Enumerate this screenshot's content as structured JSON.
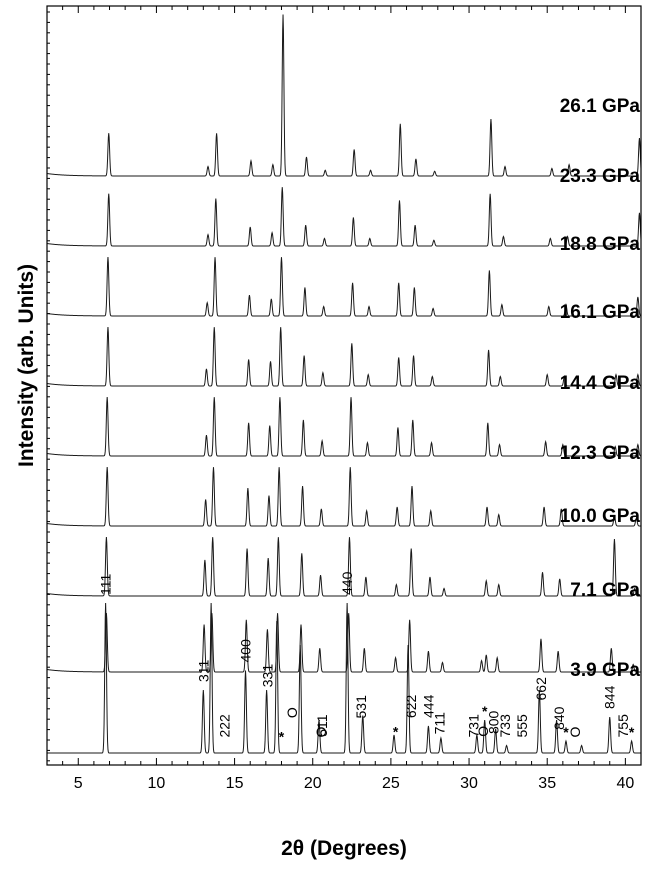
{
  "chart_data": {
    "type": "line",
    "xlabel": "2θ (Degrees)",
    "ylabel": "Intensity (arb. Units)",
    "xlim": [
      3,
      41
    ],
    "x_ticks": [
      "5",
      "10",
      "15",
      "20",
      "25",
      "30",
      "35",
      "40"
    ],
    "series": [
      {
        "name": "3.9 GPa",
        "peaks": [
          [
            6.75,
            1.0
          ],
          [
            13.0,
            0.42
          ],
          [
            13.5,
            1.0
          ],
          [
            15.7,
            0.55
          ],
          [
            17.05,
            0.42
          ],
          [
            17.7,
            0.88
          ],
          [
            19.2,
            0.72
          ],
          [
            20.4,
            0.22
          ],
          [
            22.2,
            1.0
          ],
          [
            23.2,
            0.25
          ],
          [
            25.2,
            0.12
          ],
          [
            26.1,
            0.72
          ],
          [
            27.4,
            0.18
          ],
          [
            28.2,
            0.1
          ],
          [
            30.5,
            0.12
          ],
          [
            31.0,
            0.22
          ],
          [
            31.7,
            0.16
          ],
          [
            32.4,
            0.05
          ],
          [
            34.5,
            0.42
          ],
          [
            35.6,
            0.22
          ],
          [
            36.2,
            0.08
          ],
          [
            37.2,
            0.05
          ],
          [
            39.0,
            0.24
          ],
          [
            40.4,
            0.08
          ]
        ]
      },
      {
        "name": "7.1 GPa",
        "peaks": [
          [
            6.8,
            0.62
          ],
          [
            13.05,
            0.5
          ],
          [
            13.55,
            0.62
          ],
          [
            15.75,
            0.55
          ],
          [
            17.1,
            0.45
          ],
          [
            17.75,
            0.62
          ],
          [
            19.25,
            0.5
          ],
          [
            20.45,
            0.25
          ],
          [
            22.3,
            0.62
          ],
          [
            23.3,
            0.25
          ],
          [
            25.3,
            0.15
          ],
          [
            26.2,
            0.55
          ],
          [
            27.4,
            0.22
          ],
          [
            28.3,
            0.1
          ],
          [
            30.8,
            0.12
          ],
          [
            31.1,
            0.18
          ],
          [
            31.8,
            0.15
          ],
          [
            34.6,
            0.35
          ],
          [
            35.7,
            0.22
          ],
          [
            39.1,
            0.25
          ],
          [
            40.5,
            0.08
          ]
        ]
      },
      {
        "name": "10.0 GPa",
        "peaks": [
          [
            6.8,
            0.62
          ],
          [
            13.1,
            0.38
          ],
          [
            13.6,
            0.62
          ],
          [
            15.8,
            0.5
          ],
          [
            17.15,
            0.4
          ],
          [
            17.8,
            0.62
          ],
          [
            19.3,
            0.45
          ],
          [
            20.5,
            0.22
          ],
          [
            22.35,
            0.62
          ],
          [
            23.4,
            0.2
          ],
          [
            25.35,
            0.12
          ],
          [
            26.3,
            0.5
          ],
          [
            27.5,
            0.2
          ],
          [
            28.4,
            0.08
          ],
          [
            31.1,
            0.16
          ],
          [
            31.9,
            0.12
          ],
          [
            34.7,
            0.25
          ],
          [
            35.8,
            0.18
          ],
          [
            39.3,
            0.6
          ],
          [
            40.6,
            0.08
          ]
        ]
      },
      {
        "name": "12.3 GPa",
        "peaks": [
          [
            6.85,
            0.62
          ],
          [
            13.15,
            0.28
          ],
          [
            13.65,
            0.62
          ],
          [
            15.85,
            0.4
          ],
          [
            17.2,
            0.32
          ],
          [
            17.85,
            0.62
          ],
          [
            19.35,
            0.42
          ],
          [
            20.55,
            0.18
          ],
          [
            22.4,
            0.62
          ],
          [
            23.45,
            0.16
          ],
          [
            25.4,
            0.2
          ],
          [
            26.35,
            0.42
          ],
          [
            27.55,
            0.16
          ],
          [
            31.15,
            0.2
          ],
          [
            31.9,
            0.12
          ],
          [
            34.8,
            0.2
          ],
          [
            35.9,
            0.18
          ],
          [
            39.3,
            0.1
          ],
          [
            40.7,
            0.08
          ]
        ]
      },
      {
        "name": "14.4 GPa",
        "peaks": [
          [
            6.85,
            0.62
          ],
          [
            13.2,
            0.22
          ],
          [
            13.7,
            0.62
          ],
          [
            15.9,
            0.35
          ],
          [
            17.25,
            0.32
          ],
          [
            17.9,
            0.62
          ],
          [
            19.4,
            0.38
          ],
          [
            20.6,
            0.16
          ],
          [
            22.45,
            0.62
          ],
          [
            23.5,
            0.14
          ],
          [
            25.45,
            0.3
          ],
          [
            26.4,
            0.38
          ],
          [
            27.6,
            0.14
          ],
          [
            31.2,
            0.35
          ],
          [
            31.95,
            0.12
          ],
          [
            34.9,
            0.15
          ],
          [
            36.0,
            0.12
          ],
          [
            39.35,
            0.1
          ],
          [
            40.8,
            0.12
          ]
        ]
      },
      {
        "name": "16.1 GPa",
        "peaks": [
          [
            6.9,
            0.62
          ],
          [
            13.2,
            0.18
          ],
          [
            13.7,
            0.62
          ],
          [
            15.9,
            0.28
          ],
          [
            17.3,
            0.26
          ],
          [
            17.95,
            0.62
          ],
          [
            19.45,
            0.32
          ],
          [
            20.65,
            0.14
          ],
          [
            22.5,
            0.45
          ],
          [
            23.55,
            0.12
          ],
          [
            25.5,
            0.3
          ],
          [
            26.45,
            0.32
          ],
          [
            27.65,
            0.1
          ],
          [
            31.25,
            0.38
          ],
          [
            32.0,
            0.1
          ],
          [
            35.0,
            0.12
          ],
          [
            36.1,
            0.1
          ],
          [
            39.4,
            0.12
          ],
          [
            40.8,
            0.12
          ]
        ]
      },
      {
        "name": "18.8 GPa",
        "peaks": [
          [
            6.9,
            0.62
          ],
          [
            13.25,
            0.14
          ],
          [
            13.75,
            0.62
          ],
          [
            15.95,
            0.22
          ],
          [
            17.35,
            0.18
          ],
          [
            18.0,
            0.62
          ],
          [
            19.5,
            0.3
          ],
          [
            20.7,
            0.1
          ],
          [
            22.55,
            0.35
          ],
          [
            23.6,
            0.1
          ],
          [
            25.5,
            0.35
          ],
          [
            26.5,
            0.3
          ],
          [
            27.7,
            0.08
          ],
          [
            31.3,
            0.48
          ],
          [
            32.1,
            0.12
          ],
          [
            35.1,
            0.1
          ],
          [
            36.2,
            0.12
          ],
          [
            40.8,
            0.2
          ]
        ]
      },
      {
        "name": "23.3 GPa",
        "peaks": [
          [
            6.95,
            0.55
          ],
          [
            13.3,
            0.12
          ],
          [
            13.8,
            0.5
          ],
          [
            16.0,
            0.2
          ],
          [
            17.4,
            0.14
          ],
          [
            18.05,
            0.62
          ],
          [
            19.55,
            0.22
          ],
          [
            20.75,
            0.08
          ],
          [
            22.6,
            0.3
          ],
          [
            23.65,
            0.08
          ],
          [
            25.55,
            0.48
          ],
          [
            26.55,
            0.22
          ],
          [
            27.75,
            0.06
          ],
          [
            31.35,
            0.55
          ],
          [
            32.2,
            0.1
          ],
          [
            35.2,
            0.08
          ],
          [
            36.3,
            0.1
          ],
          [
            40.9,
            0.35
          ]
        ]
      },
      {
        "name": "26.1 GPa",
        "peaks": [
          [
            6.95,
            0.45
          ],
          [
            13.3,
            0.1
          ],
          [
            13.85,
            0.45
          ],
          [
            16.05,
            0.16
          ],
          [
            17.45,
            0.12
          ],
          [
            18.1,
            1.7
          ],
          [
            19.6,
            0.2
          ],
          [
            20.8,
            0.06
          ],
          [
            22.65,
            0.28
          ],
          [
            23.7,
            0.06
          ],
          [
            25.6,
            0.55
          ],
          [
            26.6,
            0.18
          ],
          [
            27.8,
            0.05
          ],
          [
            31.4,
            0.6
          ],
          [
            32.3,
            0.1
          ],
          [
            35.3,
            0.08
          ],
          [
            36.4,
            0.12
          ],
          [
            40.9,
            0.4
          ]
        ]
      }
    ],
    "annotations": [
      {
        "text": "111",
        "x": 6.75
      },
      {
        "text": "311",
        "x": 13.0
      },
      {
        "text": "222",
        "x": 14.35
      },
      {
        "text": "400",
        "x": 15.7
      },
      {
        "text": "331",
        "x": 17.1
      },
      {
        "text": "*",
        "x": 18.0
      },
      {
        "text": "O",
        "x": 19.0
      },
      {
        "text": "511",
        "x": 20.6
      },
      {
        "text": "O",
        "x": 20.85
      },
      {
        "text": "440",
        "x": 22.2
      },
      {
        "text": "531",
        "x": 23.1
      },
      {
        "text": "*",
        "x": 25.3
      },
      {
        "text": "622",
        "x": 26.3
      },
      {
        "text": "444",
        "x": 27.4
      },
      {
        "text": "711",
        "x": 28.1
      },
      {
        "text": "731",
        "x": 30.3
      },
      {
        "text": "*",
        "x": 31.0
      },
      {
        "text": "O",
        "x": 31.2
      },
      {
        "text": "800",
        "x": 31.55
      },
      {
        "text": "733",
        "x": 32.3
      },
      {
        "text": "555",
        "x": 33.4
      },
      {
        "text": "662",
        "x": 34.6
      },
      {
        "text": "840",
        "x": 35.75
      },
      {
        "text": "*",
        "x": 36.2
      },
      {
        "text": "O",
        "x": 37.1
      },
      {
        "text": "844",
        "x": 39.0
      },
      {
        "text": "755",
        "x": 39.85
      },
      {
        "text": "*",
        "x": 40.4
      }
    ]
  }
}
